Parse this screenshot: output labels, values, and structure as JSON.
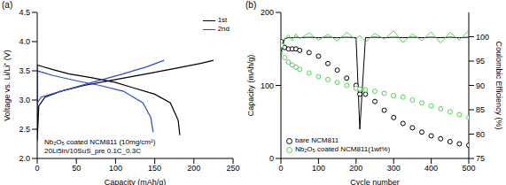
{
  "chart_data": [
    {
      "type": "line",
      "title": "(a)",
      "x_label": "Capacity (mAh/g)",
      "y_label": "Voltage vs. Li/Li⁺ (V)",
      "annotations": [
        "Nb₂O₅ coated NCM811 (10mg/cm²)",
        "20Li5In/10SuS_pre 0.1C_0.3C"
      ],
      "xlim": [
        0,
        250
      ],
      "xticks": [
        0,
        50,
        100,
        150,
        200,
        250
      ],
      "ylim": [
        2.0,
        4.5
      ],
      "yticks": [
        {
          "value": 2,
          "label": "2.0"
        },
        {
          "value": 2.5,
          "label": "2.5"
        },
        {
          "value": 3,
          "label": "3.0"
        },
        {
          "value": 3.5,
          "label": "3.5"
        },
        {
          "value": 4,
          "label": "4.0"
        },
        {
          "value": 4.5,
          "label": "4.5"
        }
      ],
      "legend": "upper right",
      "series": [
        {
          "name": "1st",
          "color": "#000000",
          "x": [
            182,
            180,
            170,
            150,
            120,
            100,
            70,
            40,
            20,
            5,
            0,
            0,
            2,
            10,
            30,
            60,
            100,
            140,
            180,
            210,
            225
          ],
          "values": [
            2.4,
            2.65,
            2.95,
            3.1,
            3.22,
            3.3,
            3.38,
            3.45,
            3.52,
            3.58,
            3.6,
            2.3,
            2.9,
            3.05,
            3.15,
            3.25,
            3.35,
            3.45,
            3.55,
            3.63,
            3.68
          ]
        },
        {
          "name": "2nd",
          "color": "#2b4cd6",
          "x": [
            148,
            145,
            135,
            110,
            80,
            50,
            20,
            0,
            0,
            5,
            30,
            70,
            110,
            140,
            162
          ],
          "values": [
            2.45,
            2.7,
            2.95,
            3.15,
            3.25,
            3.33,
            3.42,
            3.5,
            2.95,
            3.05,
            3.15,
            3.3,
            3.45,
            3.57,
            3.68
          ]
        }
      ]
    },
    {
      "type": "line",
      "title": "(b)",
      "x_label": "Cycle number",
      "y_label": "Capacity (mAh/g)",
      "y2_label": "Coulombic Efficiency (%)",
      "xlim": [
        0,
        500
      ],
      "xticks": [
        0,
        100,
        200,
        300,
        400,
        500
      ],
      "ylim": [
        0,
        200
      ],
      "yticks": [
        0,
        100,
        200
      ],
      "y2lim": [
        75,
        105
      ],
      "y2ticks": [
        75,
        80,
        85,
        90,
        95,
        100
      ],
      "legend": "lower left",
      "x": [
        1,
        10,
        20,
        30,
        40,
        50,
        75,
        100,
        125,
        150,
        175,
        200,
        210,
        225,
        250,
        275,
        300,
        325,
        350,
        375,
        400,
        425,
        450,
        475,
        500
      ],
      "series": [
        {
          "name": "bare NCM811",
          "color": "#000000",
          "marker": "circle",
          "line_style": "none",
          "values": [
            160,
            152,
            150,
            150,
            150,
            148,
            145,
            140,
            130,
            121,
            110,
            100,
            88,
            88,
            78,
            66,
            56,
            48,
            42,
            36,
            31,
            27,
            23,
            20,
            18
          ],
          "coulombic_efficiency": [
            97,
            99.6,
            99.8,
            99.8,
            99.9,
            99.8,
            99.9,
            99.8,
            99.9,
            99.8,
            99.9,
            99.8,
            81,
            99.8,
            99.9,
            99.8,
            99.9,
            99.8,
            99.9,
            99.8,
            99.9,
            99.8,
            99.9,
            99.8,
            99.9
          ]
        },
        {
          "name": "Nb₂O₅ coated NCM811(1wt%)",
          "color": "#4cd94c",
          "marker": "circle",
          "line_style": "none",
          "values": [
            155,
            138,
            132,
            128,
            125,
            122,
            117,
            112,
            108,
            104,
            100,
            96,
            95,
            94,
            92,
            89,
            86,
            84,
            80,
            76,
            72,
            68,
            64,
            60,
            56
          ],
          "coulombic_efficiency": [
            96,
            99.5,
            100.4,
            99.2,
            100.6,
            99.6,
            100.8,
            99.3,
            100.5,
            99.1,
            100.9,
            99.4,
            100.3,
            98.9,
            100.7,
            99.5,
            101.2,
            98.8,
            100.6,
            99.2,
            101.0,
            98.7,
            100.9,
            99.3,
            101.3
          ]
        }
      ]
    }
  ]
}
